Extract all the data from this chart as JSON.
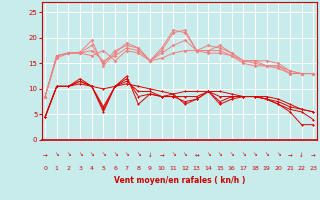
{
  "xlabel": "Vent moyen/en rafales ( kn/h )",
  "xlim": [
    0,
    23
  ],
  "ylim": [
    0,
    27
  ],
  "yticks": [
    0,
    5,
    10,
    15,
    20,
    25
  ],
  "xticks": [
    0,
    1,
    2,
    3,
    4,
    5,
    6,
    7,
    8,
    9,
    10,
    11,
    12,
    13,
    14,
    15,
    16,
    17,
    18,
    19,
    20,
    21,
    22,
    23
  ],
  "background_color": "#c8ecec",
  "grid_color": "#b0d8d8",
  "light_red": "#f08080",
  "dark_red": "#dd0000",
  "series_light": [
    [
      8.5,
      16.5,
      17.0,
      17.2,
      19.5,
      14.5,
      17.0,
      19.0,
      18.0,
      15.5,
      18.0,
      21.5,
      21.0,
      17.5,
      17.5,
      18.5,
      17.0,
      15.5,
      15.5,
      15.5,
      15.0,
      13.5,
      13.0,
      13.0
    ],
    [
      8.5,
      16.0,
      17.0,
      17.0,
      18.5,
      15.0,
      17.5,
      18.5,
      18.0,
      15.5,
      17.5,
      21.0,
      21.5,
      17.5,
      18.5,
      18.0,
      17.0,
      15.5,
      15.5,
      14.5,
      14.5,
      13.0,
      13.0,
      13.0
    ],
    [
      8.5,
      16.5,
      17.0,
      17.0,
      17.5,
      15.5,
      16.5,
      18.0,
      17.5,
      15.5,
      17.0,
      18.5,
      19.5,
      17.5,
      17.5,
      17.5,
      16.5,
      15.5,
      15.0,
      14.5,
      14.5,
      13.5,
      13.0,
      13.0
    ],
    [
      8.5,
      16.5,
      17.0,
      17.0,
      16.5,
      17.5,
      15.5,
      17.5,
      17.0,
      15.5,
      16.0,
      17.0,
      17.5,
      17.5,
      17.0,
      17.0,
      16.5,
      15.0,
      14.5,
      14.5,
      14.0,
      13.0,
      13.0,
      13.0
    ]
  ],
  "series_dark": [
    [
      4.5,
      10.5,
      10.5,
      12.0,
      10.5,
      5.5,
      10.5,
      12.5,
      7.0,
      9.0,
      8.5,
      9.0,
      7.0,
      8.0,
      9.5,
      7.0,
      8.0,
      8.5,
      8.5,
      8.0,
      7.0,
      5.5,
      3.0,
      3.0
    ],
    [
      4.5,
      10.5,
      10.5,
      11.5,
      10.5,
      6.0,
      10.5,
      12.0,
      8.5,
      9.0,
      8.5,
      8.5,
      7.5,
      8.0,
      9.5,
      7.5,
      8.5,
      8.5,
      8.5,
      8.0,
      7.0,
      6.0,
      5.5,
      4.0
    ],
    [
      4.5,
      10.5,
      10.5,
      11.5,
      10.5,
      6.5,
      10.5,
      11.5,
      9.5,
      9.5,
      8.5,
      8.5,
      8.5,
      8.5,
      9.5,
      8.5,
      8.5,
      8.5,
      8.5,
      8.0,
      7.5,
      6.5,
      6.0,
      5.5
    ],
    [
      4.5,
      10.5,
      10.5,
      11.0,
      10.5,
      10.0,
      10.5,
      11.0,
      10.5,
      10.0,
      9.5,
      9.0,
      9.5,
      9.5,
      9.5,
      9.5,
      9.0,
      8.5,
      8.5,
      8.5,
      8.0,
      7.0,
      6.0,
      5.5
    ]
  ],
  "arrow_labels": [
    "→",
    "↘",
    "↘",
    "↘",
    "↘",
    "↘",
    "↘",
    "↘",
    "↓",
    "→",
    "↘",
    "↘",
    "↔",
    "↘",
    "↘",
    "↘",
    "↘",
    "↘",
    "↘",
    "↘",
    "→",
    "→"
  ]
}
